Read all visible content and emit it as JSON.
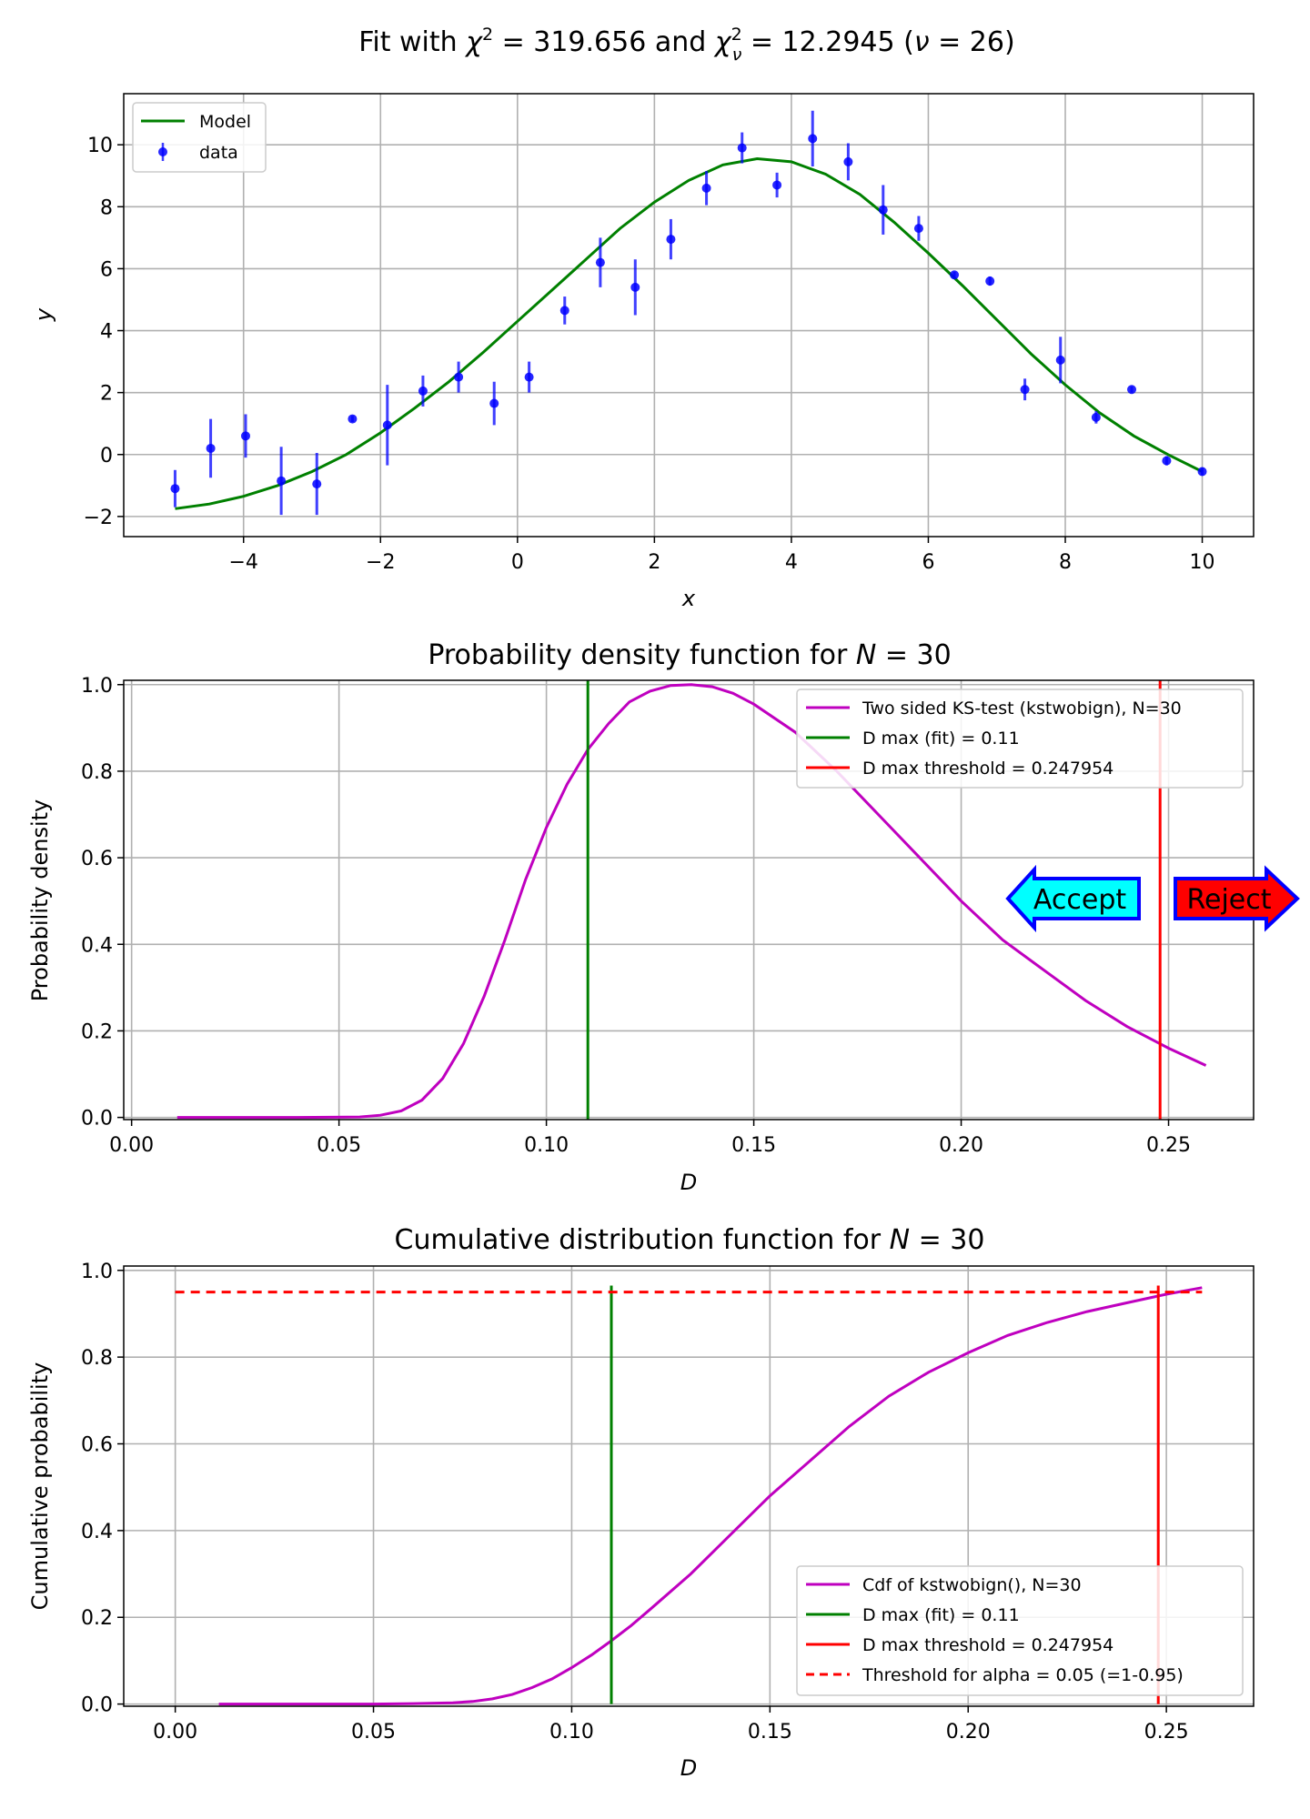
{
  "chart_data": [
    {
      "type": "scatter",
      "title_text": "Fit with χ² = 319.656 and χ²ν = 12.2945 (ν = 26)",
      "title_parts": {
        "prefix": "Fit with ",
        "chi_sym": "χ",
        "sq": "2",
        "eq1": " = 319.656 and ",
        "chi_sym2": "χ",
        "sq2": "2",
        "nu": "ν",
        "eq2": " = 12.2945 (",
        "nu2": "ν",
        "eq3": " = 26)"
      },
      "xlabel": "x",
      "ylabel": "y",
      "xlim": [
        -5.75,
        10.75
      ],
      "ylim": [
        -2.65,
        11.65
      ],
      "xticks": [
        -4,
        -2,
        0,
        2,
        4,
        6,
        8,
        10
      ],
      "yticks": [
        -2,
        0,
        2,
        4,
        6,
        8,
        10
      ],
      "grid": true,
      "legend_position": "upper-left",
      "series": [
        {
          "name": "Model",
          "kind": "line",
          "color": "#008000",
          "x": [
            -5.0,
            -4.5,
            -4.0,
            -3.5,
            -3.0,
            -2.5,
            -2.0,
            -1.5,
            -1.0,
            -0.5,
            0.0,
            0.5,
            1.0,
            1.5,
            2.0,
            2.5,
            3.0,
            3.5,
            4.0,
            4.5,
            5.0,
            5.5,
            6.0,
            6.5,
            7.0,
            7.5,
            8.0,
            8.5,
            9.0,
            9.5,
            10.0
          ],
          "y": [
            -1.75,
            -1.6,
            -1.35,
            -1.0,
            -0.55,
            0.0,
            0.7,
            1.5,
            2.35,
            3.3,
            4.3,
            5.3,
            6.3,
            7.3,
            8.15,
            8.85,
            9.35,
            9.55,
            9.45,
            9.05,
            8.4,
            7.5,
            6.5,
            5.45,
            4.35,
            3.25,
            2.25,
            1.35,
            0.6,
            0.0,
            -0.55
          ]
        },
        {
          "name": "data",
          "kind": "errorbar",
          "color": "#0000ff",
          "x": [
            -5.0,
            -4.48,
            -3.97,
            -3.45,
            -2.93,
            -2.41,
            -1.9,
            -1.38,
            -0.86,
            -0.34,
            0.17,
            0.69,
            1.21,
            1.72,
            2.24,
            2.76,
            3.28,
            3.79,
            4.31,
            4.83,
            5.34,
            5.86,
            6.38,
            6.9,
            7.41,
            7.93,
            8.45,
            8.97,
            9.48,
            10.0
          ],
          "y": [
            -1.1,
            0.2,
            0.6,
            -0.85,
            -0.95,
            1.15,
            0.95,
            2.05,
            2.5,
            1.65,
            2.5,
            4.65,
            6.2,
            5.4,
            6.95,
            8.6,
            9.9,
            8.7,
            10.2,
            9.45,
            7.9,
            7.3,
            5.8,
            5.6,
            2.1,
            3.05,
            1.2,
            2.1,
            -0.2,
            -0.55
          ],
          "err": [
            0.6,
            0.95,
            0.7,
            1.1,
            1.0,
            0.1,
            1.3,
            0.5,
            0.5,
            0.7,
            0.5,
            0.45,
            0.8,
            0.9,
            0.65,
            0.55,
            0.5,
            0.4,
            0.9,
            0.6,
            0.8,
            0.4,
            0.1,
            0.15,
            0.35,
            0.75,
            0.2,
            0.1,
            0.15,
            0.12
          ]
        }
      ]
    },
    {
      "type": "line",
      "title_prefix": "Probability density function for ",
      "title_var": "N",
      "title_suffix": " = 30",
      "xlabel": "D",
      "ylabel": "Probability density",
      "xlim": [
        -0.0019,
        0.2705
      ],
      "ylim": [
        -0.005,
        1.01
      ],
      "xticks": [
        "0.00",
        "0.05",
        "0.10",
        "0.15",
        "0.20",
        "0.25"
      ],
      "yticks": [
        "0.0",
        "0.2",
        "0.4",
        "0.6",
        "0.8",
        "1.0"
      ],
      "grid": true,
      "legend_position": "upper-right",
      "series": [
        {
          "name": "Two sided KS-test (kstwobign), N=30",
          "color": "#bf00bf",
          "x": [
            0.011,
            0.04,
            0.055,
            0.06,
            0.065,
            0.07,
            0.075,
            0.08,
            0.085,
            0.09,
            0.095,
            0.1,
            0.105,
            0.11,
            0.115,
            0.12,
            0.125,
            0.13,
            0.135,
            0.14,
            0.145,
            0.15,
            0.16,
            0.17,
            0.18,
            0.19,
            0.2,
            0.21,
            0.22,
            0.23,
            0.24,
            0.25,
            0.259
          ],
          "y": [
            0.0,
            0.0,
            0.001,
            0.005,
            0.015,
            0.04,
            0.09,
            0.17,
            0.28,
            0.41,
            0.55,
            0.67,
            0.77,
            0.85,
            0.91,
            0.96,
            0.985,
            0.998,
            1.0,
            0.995,
            0.98,
            0.955,
            0.89,
            0.8,
            0.7,
            0.6,
            0.5,
            0.41,
            0.34,
            0.27,
            0.21,
            0.16,
            0.12
          ]
        },
        {
          "name": "D max (fit) = 0.11",
          "color": "#008000",
          "vline": 0.11
        },
        {
          "name": "D max threshold = 0.247954",
          "color": "#ff0000",
          "vline": 0.247954
        }
      ],
      "annotations": [
        {
          "text": "Accept",
          "fill": "#00ffff",
          "edge": "#0000ff",
          "direction": "left"
        },
        {
          "text": "Reject",
          "fill": "#ff0000",
          "edge": "#0000ff",
          "direction": "right"
        }
      ]
    },
    {
      "type": "line",
      "title_prefix": "Cumulative distribution function for ",
      "title_var": "N",
      "title_suffix": " = 30",
      "xlabel": "D",
      "ylabel": "Cumulative probability",
      "xlim": [
        -0.013,
        0.272
      ],
      "ylim": [
        -0.005,
        1.01
      ],
      "xticks": [
        "0.00",
        "0.05",
        "0.10",
        "0.15",
        "0.20",
        "0.25"
      ],
      "yticks": [
        "0.0",
        "0.2",
        "0.4",
        "0.6",
        "0.8",
        "1.0"
      ],
      "grid": true,
      "legend_position": "lower-right",
      "series": [
        {
          "name": "Cdf of kstwobign(), N=30",
          "color": "#bf00bf",
          "x": [
            0.011,
            0.05,
            0.06,
            0.07,
            0.075,
            0.08,
            0.085,
            0.09,
            0.095,
            0.1,
            0.105,
            0.11,
            0.115,
            0.12,
            0.13,
            0.14,
            0.15,
            0.16,
            0.17,
            0.18,
            0.19,
            0.2,
            0.21,
            0.22,
            0.23,
            0.24,
            0.25,
            0.259
          ],
          "y": [
            0.0,
            0.0,
            0.001,
            0.003,
            0.006,
            0.012,
            0.022,
            0.038,
            0.058,
            0.084,
            0.113,
            0.146,
            0.181,
            0.22,
            0.3,
            0.39,
            0.48,
            0.56,
            0.64,
            0.71,
            0.765,
            0.81,
            0.85,
            0.88,
            0.905,
            0.925,
            0.945,
            0.96
          ]
        },
        {
          "name": "D max (fit) = 0.11",
          "color": "#008000",
          "vline": 0.11
        },
        {
          "name": "D max threshold = 0.247954",
          "color": "#ff0000",
          "vline": 0.247954
        },
        {
          "name": "Threshold for alpha = 0.05 (=1-0.95)",
          "color": "#ff0000",
          "hline": 0.95,
          "dashed": true
        }
      ]
    }
  ]
}
